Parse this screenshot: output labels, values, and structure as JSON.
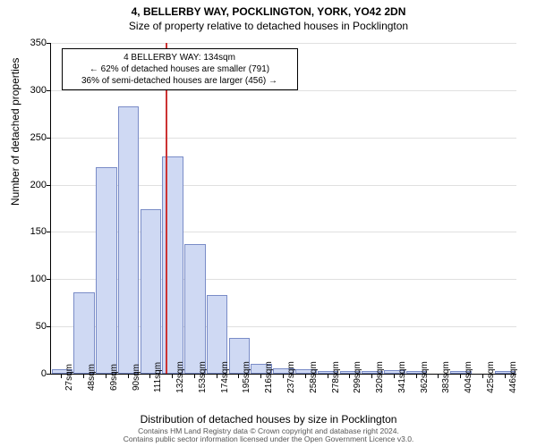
{
  "title_main": "4, BELLERBY WAY, POCKLINGTON, YORK, YO42 2DN",
  "title_sub": "Size of property relative to detached houses in Pocklington",
  "y_axis_label": "Number of detached properties",
  "x_axis_label": "Distribution of detached houses by size in Pocklington",
  "chart": {
    "type": "histogram",
    "ylim": [
      0,
      350
    ],
    "ytick_step": 50,
    "y_ticks": [
      0,
      50,
      100,
      150,
      200,
      250,
      300,
      350
    ],
    "bar_fill": "#cfd9f3",
    "bar_stroke": "#7a8cc7",
    "grid_color": "#e0e0e0",
    "background_color": "#ffffff",
    "ref_line_color": "#cc3333",
    "ref_line_at_category_index": 5,
    "categories": [
      "27sqm",
      "48sqm",
      "69sqm",
      "90sqm",
      "111sqm",
      "132sqm",
      "153sqm",
      "174sqm",
      "195sqm",
      "216sqm",
      "237sqm",
      "258sqm",
      "278sqm",
      "299sqm",
      "320sqm",
      "341sqm",
      "362sqm",
      "383sqm",
      "404sqm",
      "425sqm",
      "446sqm"
    ],
    "values": [
      5,
      86,
      219,
      283,
      174,
      230,
      137,
      83,
      38,
      10,
      6,
      5,
      3,
      3,
      3,
      4,
      3,
      0,
      3,
      0,
      3
    ]
  },
  "info_box": {
    "line1": "4 BELLERBY WAY: 134sqm",
    "line2": "← 62% of detached houses are smaller (791)",
    "line3": "36% of semi-detached houses are larger (456) →"
  },
  "footer_line1": "Contains HM Land Registry data © Crown copyright and database right 2024.",
  "footer_line2": "Contains public sector information licensed under the Open Government Licence v3.0."
}
